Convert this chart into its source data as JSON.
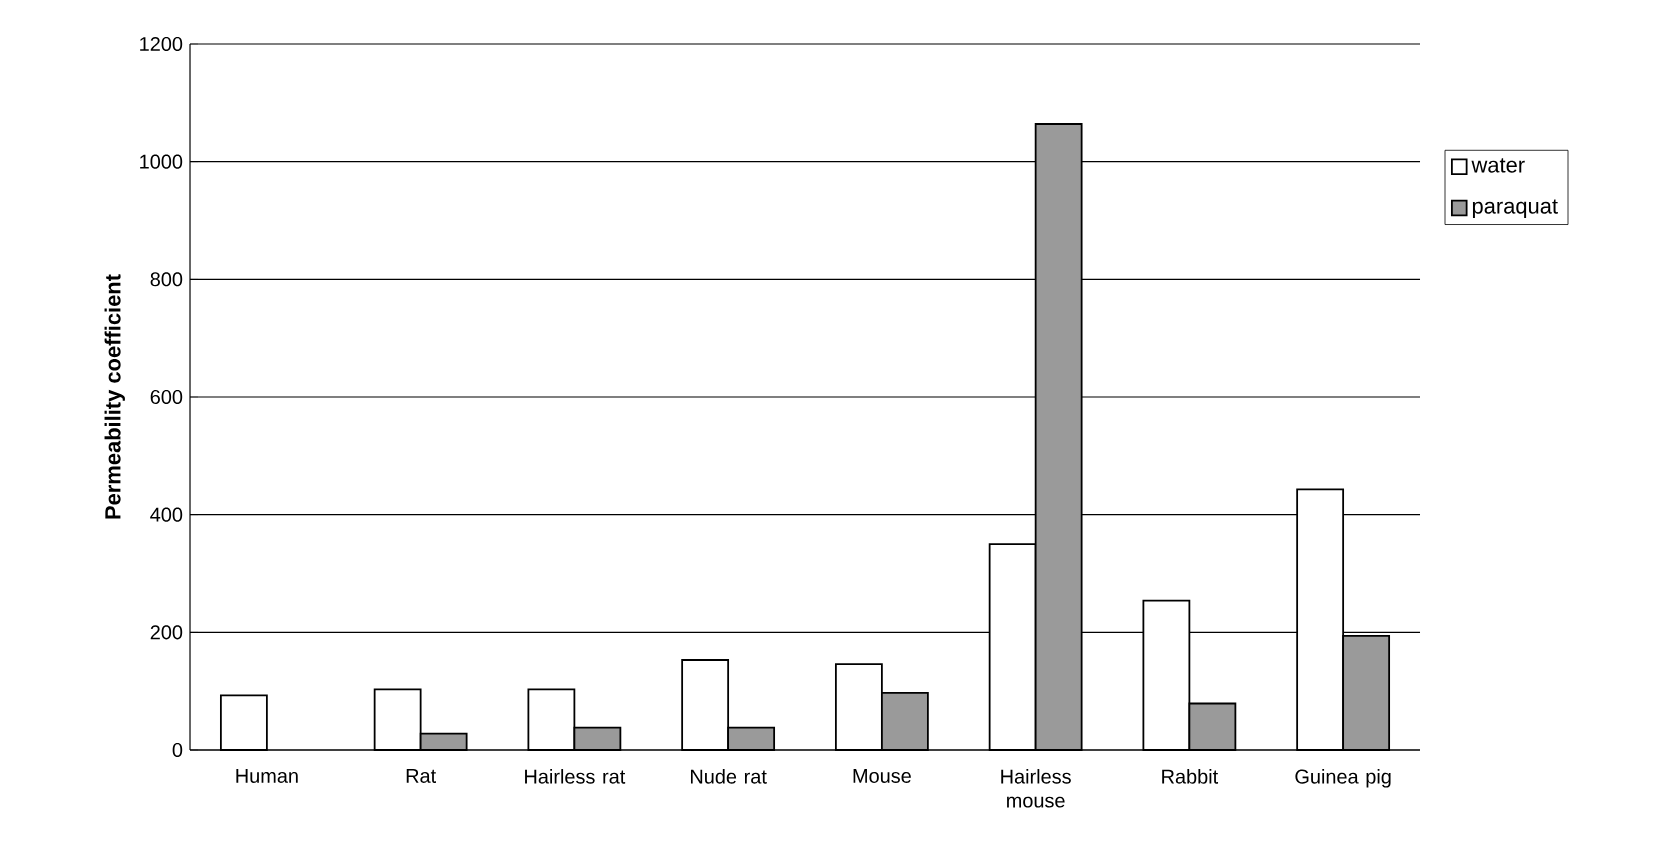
{
  "chart_data": {
    "type": "bar",
    "ylabel": "**Permeability coefficient**",
    "categories": [
      "Human",
      "Rat",
      "Hairless rat",
      "Nude rat",
      "Mouse",
      "Hairless mouse",
      "Rabbit",
      "Guinea pig"
    ],
    "series": [
      {
        "name": "water",
        "color": "#ffffff",
        "values": [
          93,
          103,
          103,
          153,
          146,
          350,
          254,
          443
        ]
      },
      {
        "name": "paraquat",
        "color": "#9a9a9a",
        "values": [
          null,
          28,
          38,
          38,
          97,
          1064,
          79,
          194
        ]
      }
    ],
    "ylim": [
      0,
      1200
    ],
    "yticks": [
      0,
      200,
      400,
      600,
      800,
      1000,
      1200
    ],
    "grid": "y",
    "legend": "right"
  }
}
